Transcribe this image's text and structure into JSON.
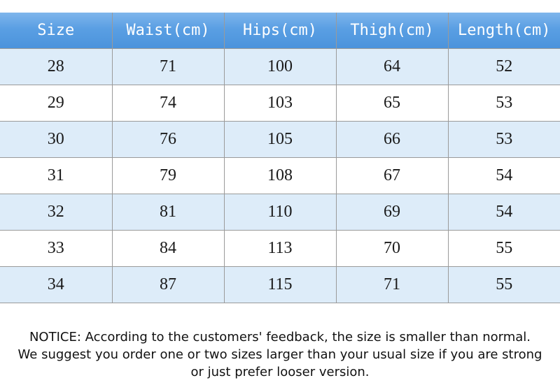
{
  "table": {
    "headers": [
      "Size",
      "Waist(cm)",
      "Hips(cm)",
      "Thigh(cm)",
      "Length(cm)"
    ],
    "rows": [
      [
        "28",
        "71",
        "100",
        "64",
        "52"
      ],
      [
        "29",
        "74",
        "103",
        "65",
        "53"
      ],
      [
        "30",
        "76",
        "105",
        "66",
        "53"
      ],
      [
        "31",
        "79",
        "108",
        "67",
        "54"
      ],
      [
        "32",
        "81",
        "110",
        "69",
        "54"
      ],
      [
        "33",
        "84",
        "113",
        "70",
        "55"
      ],
      [
        "34",
        "87",
        "115",
        "71",
        "55"
      ]
    ]
  },
  "notice": {
    "line1": "NOTICE: According to the customers' feedback, the size is smaller than normal.",
    "line2": "We suggest you order one or two sizes larger than your usual size if you are strong",
    "line3": "or just prefer looser version."
  },
  "colors": {
    "header_bg": "#5a9fe3",
    "stripe_bg": "#ddecf9"
  }
}
